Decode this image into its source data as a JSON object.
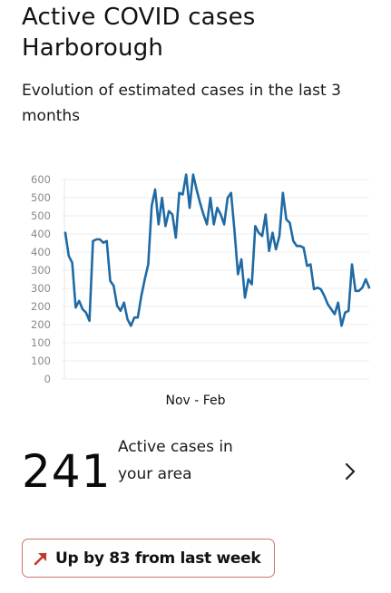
{
  "header": {
    "title": "Active COVID cases Harborough",
    "subtitle": "Evolution of estimated cases in the last 3 months"
  },
  "chart_data": {
    "type": "line",
    "title": "",
    "xlabel": "Nov - Feb",
    "ylabel": "",
    "ylim": [
      0,
      600
    ],
    "yticks": [
      "600",
      "500",
      "500",
      "400",
      "400",
      "300",
      "300",
      "200",
      "200",
      "100",
      "100",
      "0"
    ],
    "grid": true,
    "line_color": "#1f6aa5",
    "series": [
      {
        "values": [
          440,
          370,
          350,
          215,
          235,
          210,
          200,
          175,
          415,
          420,
          420,
          410,
          415,
          295,
          280,
          220,
          205,
          230,
          180,
          160,
          185,
          185,
          250,
          300,
          345,
          520,
          570,
          465,
          545,
          460,
          505,
          495,
          425,
          560,
          555,
          615,
          515,
          615,
          570,
          530,
          495,
          465,
          545,
          465,
          515,
          495,
          465,
          545,
          560,
          445,
          315,
          360,
          245,
          300,
          285,
          460,
          440,
          430,
          495,
          385,
          440,
          390,
          430,
          560,
          480,
          470,
          415,
          400,
          400,
          395,
          340,
          345,
          270,
          275,
          270,
          250,
          225,
          210,
          195,
          230,
          160,
          200,
          205,
          345,
          265,
          265,
          275,
          300,
          275
        ]
      }
    ]
  },
  "stats": {
    "count": "241",
    "label": "Active cases in your area"
  },
  "trend": {
    "text": "Up by 83 from last week",
    "icon": "arrow-up-right-icon",
    "border_color": "#c7786c",
    "arrow_color": "#c0392b"
  }
}
